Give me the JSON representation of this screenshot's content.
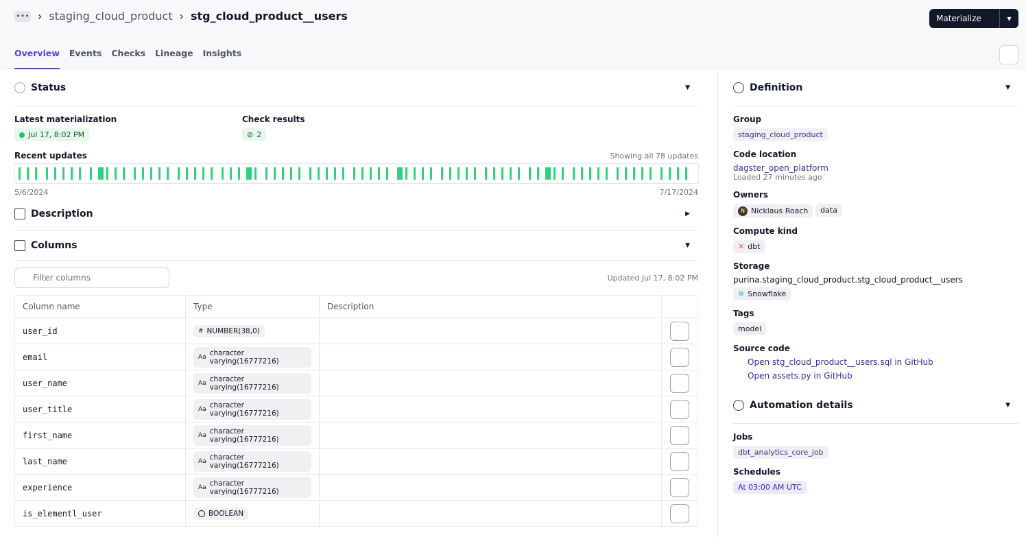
{
  "breadcrumb": {
    "parent": "staging_cloud_product",
    "current": "stg_cloud_product__users"
  },
  "actions": {
    "materialize": "Materialize"
  },
  "tabs": [
    "Overview",
    "Events",
    "Checks",
    "Lineage",
    "Insights"
  ],
  "status": {
    "title": "Status",
    "latest_label": "Latest materialization",
    "latest_value": "Jul 17, 8:02 PM",
    "check_label": "Check results",
    "check_value": "2",
    "recent_label": "Recent updates",
    "showing": "Showing all 78 updates",
    "start": "5/6/2024",
    "end": "7/17/2024"
  },
  "description": {
    "title": "Description"
  },
  "columns": {
    "title": "Columns",
    "filter_placeholder": "Filter columns",
    "updated": "Updated Jul 17, 8:02 PM",
    "headers": [
      "Column name",
      "Type",
      "Description"
    ],
    "rows": [
      [
        "user_id",
        "#",
        "NUMBER(38,0)"
      ],
      [
        "email",
        "Aa",
        "character varying(16777216)"
      ],
      [
        "user_name",
        "Aa",
        "character varying(16777216)"
      ],
      [
        "user_title",
        "Aa",
        "character varying(16777216)"
      ],
      [
        "first_name",
        "Aa",
        "character varying(16777216)"
      ],
      [
        "last_name",
        "Aa",
        "character varying(16777216)"
      ],
      [
        "experience",
        "Aa",
        "character varying(16777216)"
      ],
      [
        "is_elementl_user",
        "",
        "BOOLEAN"
      ]
    ]
  },
  "definition": {
    "title": "Definition",
    "group_label": "Group",
    "group": "staging_cloud_product",
    "code_location_label": "Code location",
    "code_location": "dagster_open_platform",
    "loaded": "Loaded 27 minutes ago",
    "owners_label": "Owners",
    "owner_initial": "N",
    "owner_user": "Nicklaus Roach",
    "owner_team": "data",
    "compute_label": "Compute kind",
    "compute": "dbt",
    "storage_label": "Storage",
    "storage": "purina.staging_cloud_product.stg_cloud_product__users",
    "storage_kind": "Snowflake",
    "tags_label": "Tags",
    "tag": "model",
    "source_label": "Source code",
    "source_links": [
      "Open stg_cloud_product__users.sql in GitHub",
      "Open assets.py in GitHub"
    ]
  },
  "automation": {
    "title": "Automation details",
    "jobs_label": "Jobs",
    "job": "dbt_analytics_core_job",
    "schedules_label": "Schedules",
    "schedule": "At 03:00 AM UTC"
  }
}
